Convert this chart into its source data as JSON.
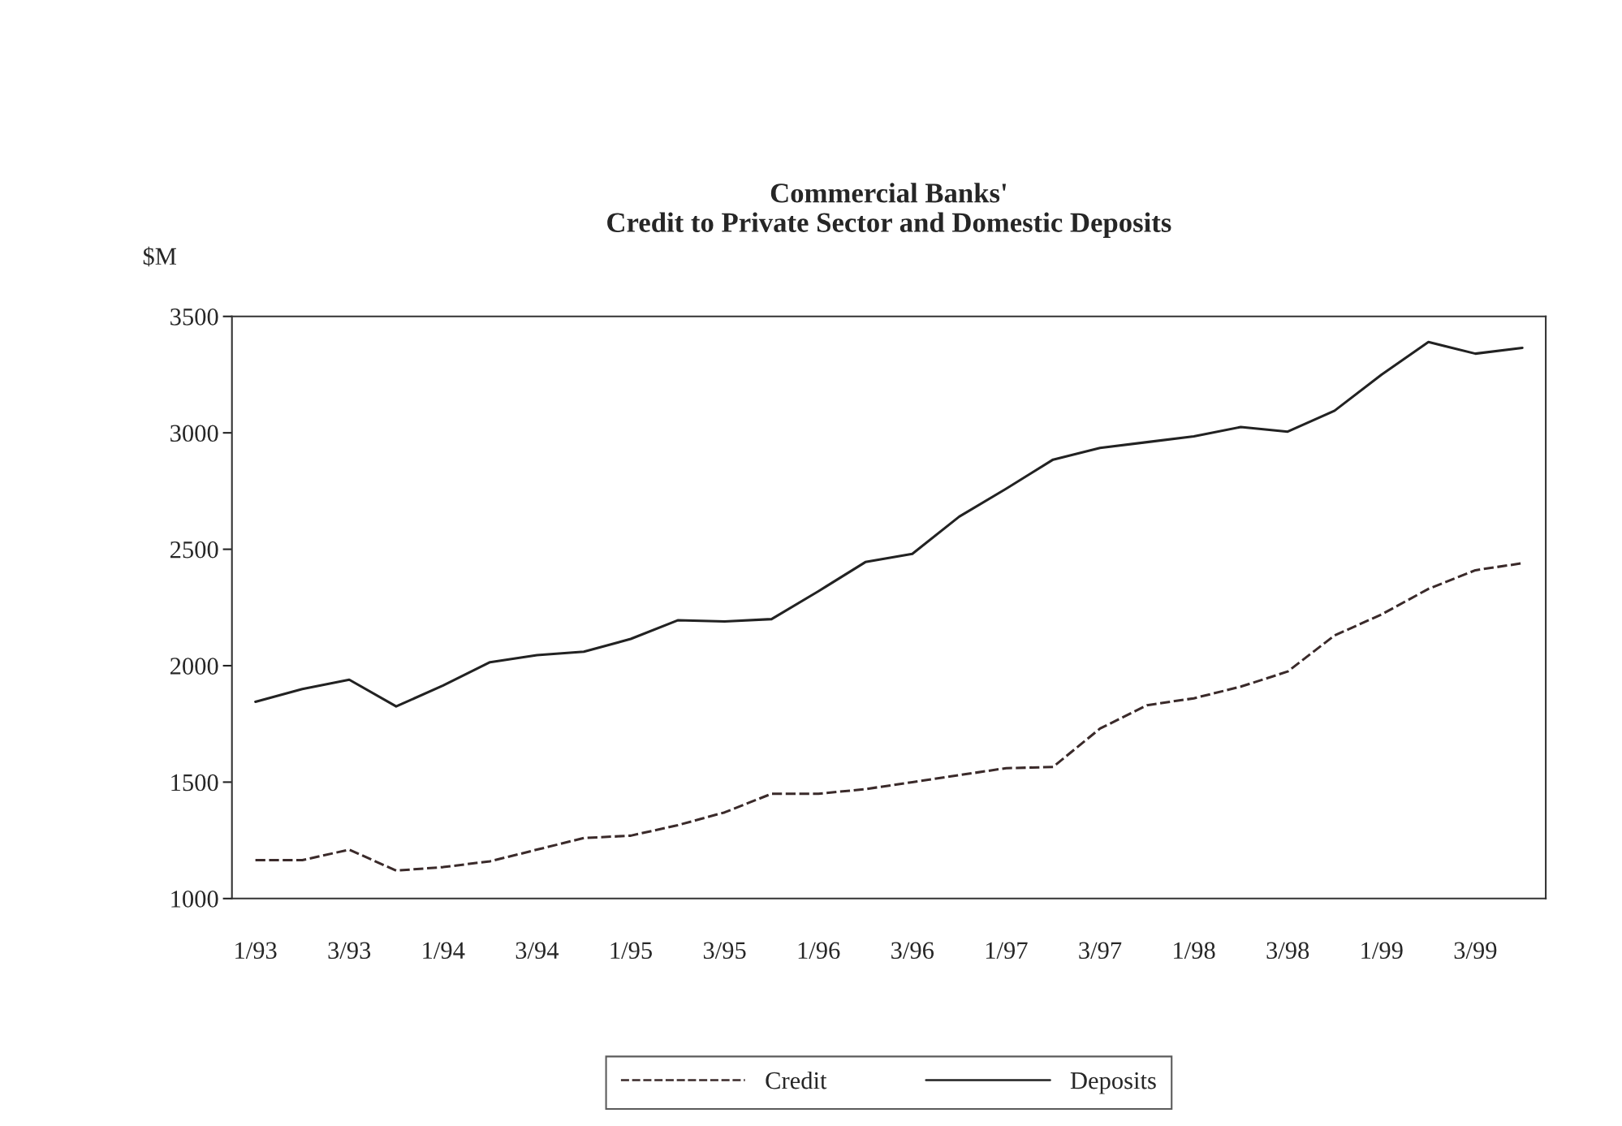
{
  "chart_data": {
    "type": "line",
    "title": "Commercial Banks'\nCredit to Private Sector and Domestic Deposits",
    "ylabel": "$M",
    "categories": [
      "1/93",
      null,
      "3/93",
      null,
      "1/94",
      null,
      "3/94",
      null,
      "1/95",
      null,
      "3/95",
      null,
      "1/96",
      null,
      "3/96",
      null,
      "1/97",
      null,
      "3/97",
      null,
      "1/98",
      null,
      "3/98",
      null,
      "1/99",
      null,
      "3/99",
      null
    ],
    "series": [
      {
        "name": "Credit",
        "color": "#3a2a2a",
        "line_style": "dashed",
        "values": [
          1165,
          1165,
          1210,
          1120,
          1135,
          1160,
          1210,
          1260,
          1270,
          1315,
          1370,
          1450,
          1450,
          1470,
          1500,
          1530,
          1560,
          1565,
          1730,
          1830,
          1860,
          1910,
          1975,
          2130,
          2220,
          2330,
          2410,
          2440
        ]
      },
      {
        "name": "Deposits",
        "color": "#222222",
        "line_style": "solid",
        "values": [
          1845,
          1900,
          1940,
          1825,
          1915,
          2015,
          2045,
          2060,
          2115,
          2195,
          2190,
          2200,
          2320,
          2445,
          2480,
          2640,
          2760,
          2885,
          2935,
          2960,
          2985,
          3025,
          3005,
          3095,
          3250,
          3390,
          3340,
          3365
        ]
      }
    ],
    "ylim": [
      1000,
      3500
    ],
    "yticks": [
      1000,
      1500,
      2000,
      2500,
      3000,
      3500
    ],
    "grid": false,
    "legend": "bottom"
  }
}
